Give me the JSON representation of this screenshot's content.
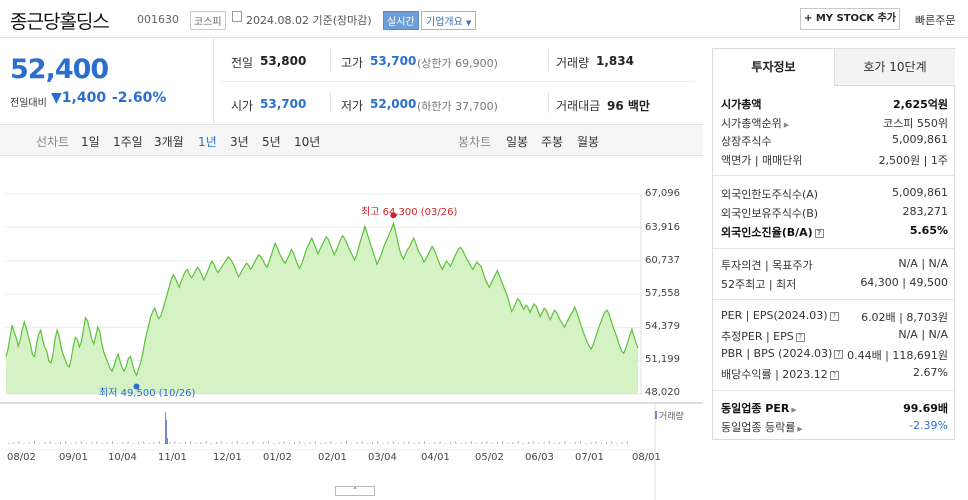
{
  "header": {
    "company": "종근당홀딩스",
    "code": "001630",
    "market": "코스피",
    "date_text": "2024.08.02 기준(장마감)",
    "live": "실시간",
    "corp_info": "기업개요",
    "mystock": "+ MY STOCK 추가",
    "quick_order": "빠른주문"
  },
  "price": {
    "current": "52,400",
    "diff_label": "전일대비",
    "diff_arrow": "▼",
    "diff": "1,400",
    "rate": "-2.60%"
  },
  "stats": {
    "prev_label": "전일",
    "prev": "53,800",
    "high_label": "고가",
    "high": "53,700",
    "high_limit": "(상한가 69,900)",
    "vol_label": "거래량",
    "vol": "1,834",
    "open_label": "시가",
    "open": "53,700",
    "low_label": "저가",
    "low": "52,000",
    "low_limit": "(하한가 37,700)",
    "amt_label": "거래대금",
    "amt": "96 백만"
  },
  "period_bar": {
    "line_label": "선차트",
    "periods": [
      "1일",
      "1주일",
      "3개월",
      "1년",
      "3년",
      "5년",
      "10년"
    ],
    "selected": "1년",
    "candle_label": "봉차트",
    "candles": [
      "일봉",
      "주봉",
      "월봉"
    ]
  },
  "chart_data": {
    "type": "area",
    "color": "#5cc13a",
    "fill": "#d5f2c5",
    "ylim": [
      48020,
      67096
    ],
    "y_ticks": [
      "67,096",
      "63,916",
      "60,737",
      "57,558",
      "54,379",
      "51,199",
      "48,020"
    ],
    "x_ticks": [
      "08/02",
      "09/01",
      "10/04",
      "11/01",
      "12/01",
      "01/02",
      "02/01",
      "03/04",
      "04/01",
      "05/02",
      "06/03",
      "07/01",
      "08/01"
    ],
    "high_label": "최고 64,300 (03/26)",
    "low_label": "최저 49,500 (10/26)",
    "high": 64300,
    "low": 49500,
    "values": [
      51600,
      52300,
      53500,
      54600,
      53900,
      53400,
      52600,
      53200,
      54200,
      54900,
      54300,
      53500,
      52700,
      51800,
      51600,
      52800,
      53700,
      54100,
      53200,
      52500,
      52100,
      51200,
      51000,
      51700,
      53200,
      54100,
      53600,
      52500,
      51800,
      51300,
      50800,
      50600,
      51400,
      52600,
      53400,
      53200,
      52500,
      53000,
      54200,
      55300,
      55000,
      54200,
      53300,
      52800,
      53500,
      54400,
      54000,
      52800,
      52000,
      51500,
      51000,
      50500,
      50200,
      50700,
      51400,
      51800,
      51100,
      50500,
      50200,
      50700,
      51400,
      51600,
      50900,
      50200,
      49800,
      50400,
      51000,
      51800,
      52900,
      53800,
      54600,
      55400,
      55900,
      56200,
      55600,
      55200,
      55500,
      56100,
      56800,
      57500,
      58200,
      58900,
      59400,
      59100,
      58600,
      58200,
      58800,
      59300,
      59700,
      59900,
      59400,
      59100,
      59400,
      59800,
      60100,
      59800,
      59400,
      58900,
      59300,
      59800,
      60300,
      60700,
      60400,
      59900,
      59600,
      59900,
      60200,
      60500,
      60800,
      61100,
      60900,
      60600,
      60200,
      59700,
      59200,
      59500,
      59900,
      60200,
      60500,
      60300,
      59900,
      60200,
      60600,
      61000,
      61300,
      61100,
      60800,
      60400,
      60100,
      60600,
      61200,
      61800,
      62400,
      62000,
      61500,
      61100,
      60700,
      60500,
      60900,
      61300,
      61800,
      61500,
      60900,
      60400,
      60000,
      60400,
      61000,
      61600,
      62100,
      62500,
      62900,
      62400,
      61900,
      61400,
      61800,
      62200,
      62600,
      63000,
      62800,
      62300,
      61800,
      61300,
      61700,
      62200,
      62700,
      63100,
      62900,
      62500,
      62000,
      61600,
      61200,
      60800,
      61300,
      62000,
      62700,
      63300,
      64000,
      63400,
      62800,
      62200,
      61600,
      61000,
      60400,
      60800,
      61300,
      61900,
      62400,
      62800,
      63300,
      63700,
      64300,
      63600,
      62700,
      61800,
      61200,
      60900,
      61400,
      61800,
      62100,
      62500,
      62900,
      62400,
      61800,
      61400,
      61100,
      60600,
      60900,
      61300,
      61700,
      62100,
      61800,
      61300,
      60800,
      60300,
      59900,
      60300,
      60700,
      60500,
      60200,
      60600,
      61100,
      61500,
      61900,
      62000,
      61700,
      61300,
      60900,
      60600,
      60200,
      59900,
      60300,
      60600,
      60400,
      60200,
      59600,
      59000,
      58600,
      58200,
      58600,
      59000,
      59400,
      59800,
      59300,
      58800,
      58300,
      57800,
      57300,
      56600,
      55900,
      56200,
      56700,
      57100,
      56900,
      56400,
      56100,
      56500,
      56300,
      55800,
      56200,
      56600,
      56400,
      55900,
      55400,
      55800,
      56200,
      56000,
      55500,
      55100,
      55600,
      56000,
      55800,
      55400,
      55000,
      54700,
      54400,
      54800,
      55200,
      55600,
      55900,
      56300,
      55800,
      55200,
      54600,
      54000,
      53500,
      53000,
      52600,
      52300,
      52700,
      53300,
      53900,
      54500,
      55000,
      55500,
      55900,
      56000,
      55500,
      54900,
      54300,
      53800,
      53200,
      52600,
      52100,
      51900,
      52400,
      53000,
      53600,
      54200,
      53500,
      52900,
      52400
    ]
  },
  "volume": {
    "label": "거래량"
  },
  "right_panel": {
    "tab1": "투자정보",
    "tab2": "호가 10단계",
    "market_cap_label": "시가총액",
    "market_cap": "2,625억원",
    "rank_label": "시가총액순위",
    "rank": "코스피 550위",
    "shares_label": "상장주식수",
    "shares": "5,009,861",
    "par_label": "액면가 | 매매단위",
    "par": "2,500원 | 1주",
    "foreign_limit_label": "외국인한도주식수(A)",
    "foreign_limit": "5,009,861",
    "foreign_hold_label": "외국인보유주식수(B)",
    "foreign_hold": "283,271",
    "foreign_ratio_label": "외국인소진율(B/A)",
    "foreign_ratio": "5.65%",
    "opinion_label": "투자의견 | 목표주가",
    "opinion": "N/A | N/A",
    "w52_label": "52주최고 | 최저",
    "w52": "64,300 | 49,500",
    "per_label": "PER | EPS(2024.03)",
    "per": "6.02배 | 8,703원",
    "est_per_label": "추정PER | EPS",
    "est_per": "N/A | N/A",
    "pbr_label": "PBR | BPS (2024.03)",
    "pbr": "0.44배 | 118,691원",
    "div_label": "배당수익률 | 2023.12",
    "div": "2.67%",
    "ind_per_label": "동일업종 PER",
    "ind_per": "99.69배",
    "ind_rate_label": "동일업종 등락률",
    "ind_rate": "-2.39%"
  }
}
